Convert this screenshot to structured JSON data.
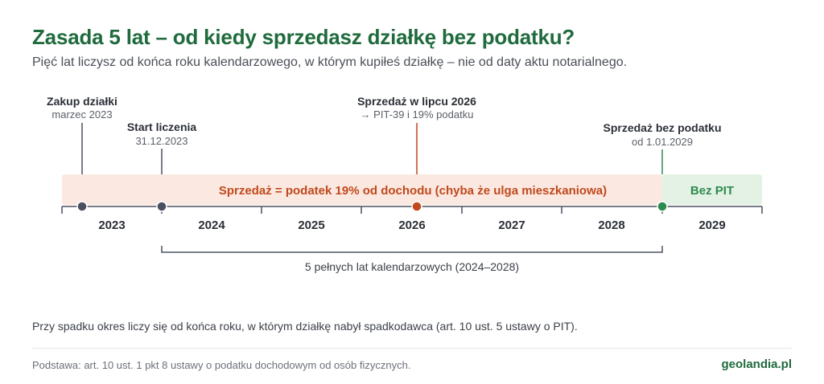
{
  "title": "Zasada 5 lat – od kiedy sprzedasz działkę bez podatku?",
  "subtitle": "Pięć lat liczysz od końca roku kalendarzowego, w którym kupiłeś działkę – nie od daty aktu notarialnego.",
  "colors": {
    "title_green": "#1f6b3d",
    "tax_band": "#fbe9e1",
    "tax_text": "#c0491d",
    "free_band": "#e3f2e4",
    "free_text": "#2e8b4f",
    "neutral_marker": "#4a5060",
    "axis": "#4a5060"
  },
  "timeline": {
    "years": [
      "2023",
      "2024",
      "2025",
      "2026",
      "2027",
      "2028",
      "2029"
    ],
    "tax_band_label": "Sprzedaż = podatek 19% od dochodu (chyba że ulga mieszkaniowa)",
    "free_band_label": "Bez PIT",
    "events": [
      {
        "title": "Zakup działki",
        "detail": "marzec 2023",
        "type": "neutral"
      },
      {
        "title": "Start liczenia",
        "detail": "31.12.2023",
        "type": "neutral"
      },
      {
        "title": "Sprzedaż w lipcu 2026",
        "detail": "→ PIT-39 i 19% podatku",
        "type": "tax"
      },
      {
        "title": "Sprzedaż bez podatku",
        "detail": "od 1.01.2029",
        "type": "free"
      }
    ],
    "span_label": "5 pełnych lat kalendarzowych (2024–2028)"
  },
  "note": "Przy spadku okres liczy się od końca roku, w którym działkę nabył spadkodawca (art. 10 ust. 5 ustawy o PIT).",
  "footer": {
    "basis": "Podstawa: art. 10 ust. 1 pkt 8 ustawy o podatku dochodowym od osób fizycznych.",
    "brand": "geolandia.pl"
  }
}
